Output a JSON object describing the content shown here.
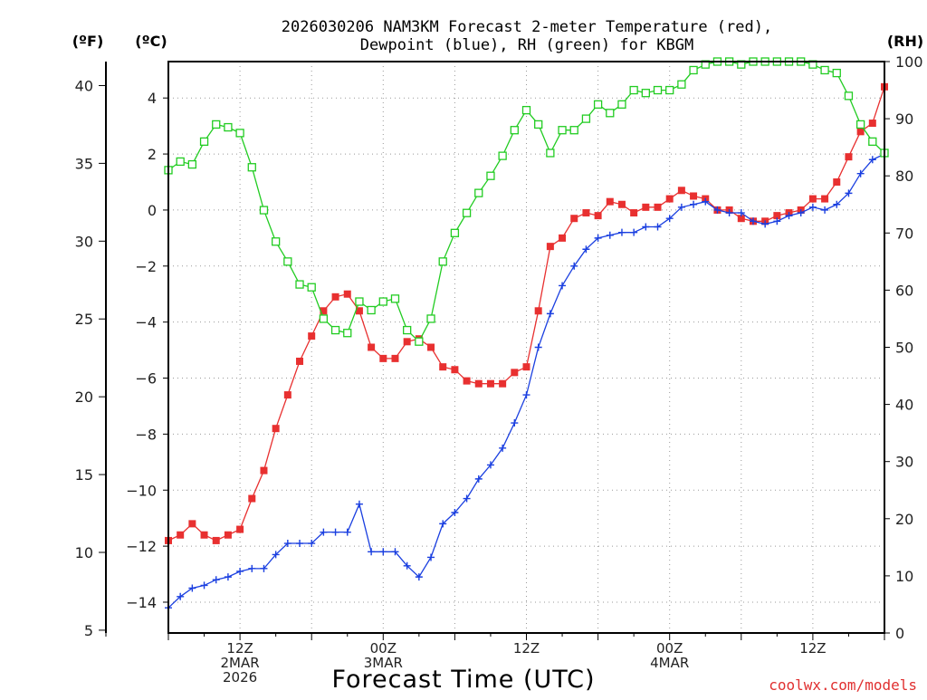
{
  "title_line1": "2026030206 NAM3KM Forecast 2-meter Temperature (red),",
  "title_line2": "Dewpoint (blue), RH (green) for KBGM",
  "unit_f": "(ºF)",
  "unit_c": "(ºC)",
  "unit_rh": "(RH)",
  "xlabel": "Forecast Time (UTC)",
  "credit": "coolwx.com/models",
  "colors": {
    "temperature": "#e83030",
    "dewpoint": "#1a3fe0",
    "rh": "#22cc22",
    "grid": "#999999"
  },
  "chart_data": {
    "type": "line",
    "title": "2026030206 NAM3KM Forecast 2-meter Temperature (red), Dewpoint (blue), RH (green) for KBGM",
    "xlabel": "Forecast Time (UTC)",
    "x_hours_since_2026030206": [
      0,
      1,
      2,
      3,
      4,
      5,
      6,
      7,
      8,
      9,
      10,
      11,
      12,
      13,
      14,
      15,
      16,
      17,
      18,
      19,
      20,
      21,
      22,
      23,
      24,
      25,
      26,
      27,
      28,
      29,
      30,
      31,
      32,
      33,
      34,
      35,
      36,
      37,
      38,
      39,
      40,
      41,
      42,
      43,
      44,
      45,
      46,
      47,
      48,
      49,
      50,
      51,
      52,
      53,
      54,
      55,
      56,
      57,
      58,
      59,
      60
    ],
    "x_ticks": [
      {
        "hour": 6,
        "lines": [
          "12Z",
          "2MAR",
          "2026"
        ]
      },
      {
        "hour": 18,
        "lines": [
          "00Z",
          "3MAR"
        ]
      },
      {
        "hour": 30,
        "lines": [
          "12Z"
        ]
      },
      {
        "hour": 42,
        "lines": [
          "00Z",
          "4MAR"
        ]
      },
      {
        "hour": 54,
        "lines": [
          "12Z"
        ]
      }
    ],
    "y_left_celsius": {
      "range": [
        -15.1,
        5.3
      ],
      "ticks": [
        -14,
        -12,
        -10,
        -8,
        -6,
        -4,
        -2,
        0,
        2,
        4
      ]
    },
    "y_left_fahrenheit": {
      "ticks": [
        5,
        10,
        15,
        20,
        25,
        30,
        35,
        40
      ]
    },
    "y_right_rh": {
      "range": [
        0,
        100
      ],
      "ticks": [
        0,
        10,
        20,
        30,
        40,
        50,
        60,
        70,
        80,
        90,
        100
      ]
    },
    "grid": true,
    "series": [
      {
        "name": "Temperature",
        "axis": "celsius",
        "marker": "filled-square",
        "values": [
          -11.8,
          -11.6,
          -11.2,
          -11.6,
          -11.8,
          -11.6,
          -11.4,
          -10.3,
          -9.3,
          -7.8,
          -6.6,
          -5.4,
          -4.5,
          -3.6,
          -3.1,
          -3.0,
          -3.6,
          -4.9,
          -5.3,
          -5.3,
          -4.7,
          -4.6,
          -4.9,
          -5.6,
          -5.7,
          -6.1,
          -6.2,
          -6.2,
          -6.2,
          -5.8,
          -5.6,
          -3.6,
          -1.3,
          -1.0,
          -0.3,
          -0.1,
          -0.2,
          0.3,
          0.2,
          -0.1,
          0.1,
          0.1,
          0.4,
          0.7,
          0.5,
          0.4,
          0.0,
          0.0,
          -0.3,
          -0.4,
          -0.4,
          -0.2,
          -0.1,
          -0.0,
          0.4,
          0.4,
          1.0,
          1.9,
          2.8,
          3.1,
          4.4
        ]
      },
      {
        "name": "Dewpoint",
        "axis": "celsius",
        "marker": "plus",
        "values": [
          -14.2,
          -13.8,
          -13.5,
          -13.4,
          -13.2,
          -13.1,
          -12.9,
          -12.8,
          -12.8,
          -12.3,
          -11.9,
          -11.9,
          -11.9,
          -11.5,
          -11.5,
          -11.5,
          -10.5,
          -12.2,
          -12.2,
          -12.2,
          -12.7,
          -13.1,
          -12.4,
          -11.2,
          -10.8,
          -10.3,
          -9.6,
          -9.1,
          -8.5,
          -7.6,
          -6.6,
          -4.9,
          -3.7,
          -2.7,
          -2.0,
          -1.4,
          -1.0,
          -0.9,
          -0.8,
          -0.8,
          -0.6,
          -0.6,
          -0.3,
          0.1,
          0.2,
          0.3,
          0.0,
          -0.1,
          -0.1,
          -0.4,
          -0.5,
          -0.4,
          -0.2,
          -0.1,
          0.1,
          0.0,
          0.2,
          0.6,
          1.3,
          1.8,
          2.0
        ]
      },
      {
        "name": "RH",
        "axis": "rh",
        "marker": "open-square",
        "values": [
          81,
          82.5,
          82,
          86,
          89,
          88.5,
          87.5,
          81.5,
          74,
          68.5,
          65,
          61,
          60.5,
          55,
          53,
          52.5,
          58,
          56.5,
          58,
          58.5,
          53,
          51,
          55,
          65,
          70,
          73.5,
          77,
          80,
          83.5,
          88,
          91.5,
          89,
          84,
          88,
          88,
          90,
          92.5,
          91,
          92.5,
          95,
          94.5,
          95,
          95,
          96,
          98.5,
          99.5,
          100,
          100,
          99.5,
          100,
          100,
          100,
          100,
          100,
          99.5,
          98.5,
          98,
          94,
          89,
          86,
          84
        ]
      }
    ]
  }
}
